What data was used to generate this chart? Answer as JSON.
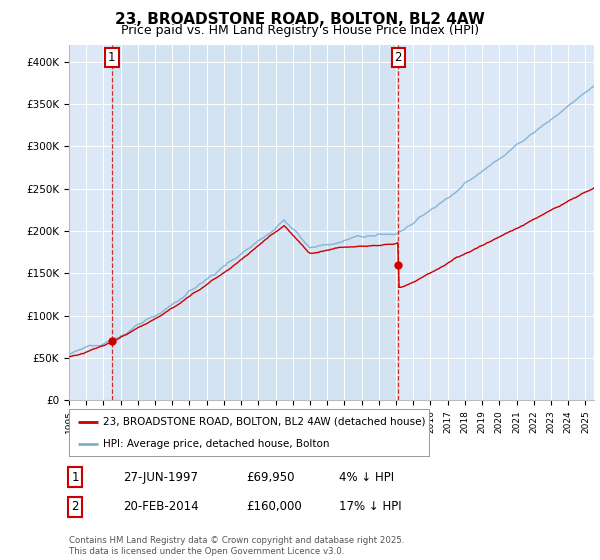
{
  "title": "23, BROADSTONE ROAD, BOLTON, BL2 4AW",
  "subtitle": "Price paid vs. HM Land Registry's House Price Index (HPI)",
  "ylim": [
    0,
    420000
  ],
  "yticks": [
    0,
    50000,
    100000,
    150000,
    200000,
    250000,
    300000,
    350000,
    400000
  ],
  "ytick_labels": [
    "£0",
    "£50K",
    "£100K",
    "£150K",
    "£200K",
    "£250K",
    "£300K",
    "£350K",
    "£400K"
  ],
  "hpi_color": "#7bafd4",
  "price_color": "#cc0000",
  "vline_color": "#cc0000",
  "plot_bg_color": "#dce8f5",
  "plot_bg_color2": "#cde0f0",
  "marker1_date": 1997.49,
  "marker1_value": 69950,
  "marker2_date": 2014.13,
  "marker2_value": 160000,
  "legend_price_label": "23, BROADSTONE ROAD, BOLTON, BL2 4AW (detached house)",
  "legend_hpi_label": "HPI: Average price, detached house, Bolton",
  "table_row1": [
    "1",
    "27-JUN-1997",
    "£69,950",
    "4% ↓ HPI"
  ],
  "table_row2": [
    "2",
    "20-FEB-2014",
    "£160,000",
    "17% ↓ HPI"
  ],
  "footer": "Contains HM Land Registry data © Crown copyright and database right 2025.\nThis data is licensed under the Open Government Licence v3.0.",
  "title_fontsize": 11,
  "subtitle_fontsize": 9,
  "tick_fontsize": 7.5
}
